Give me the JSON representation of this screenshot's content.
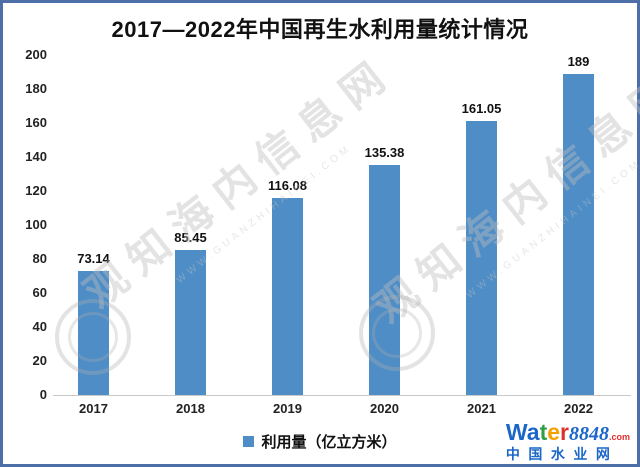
{
  "title": "2017—2022年中国再生水利用量统计情况",
  "chart_data": {
    "type": "bar",
    "categories": [
      "2017",
      "2018",
      "2019",
      "2020",
      "2021",
      "2022"
    ],
    "values": [
      73.14,
      85.45,
      116.08,
      135.38,
      161.05,
      189
    ],
    "value_labels": [
      "73.14",
      "85.45",
      "116.08",
      "135.38",
      "161.05",
      "189"
    ],
    "title": "2017—2022年中国再生水利用量统计情况",
    "xlabel": "",
    "ylabel": "",
    "ylim": [
      0,
      200
    ],
    "yticks": [
      0,
      20,
      40,
      60,
      80,
      100,
      120,
      140,
      160,
      180,
      200
    ],
    "grid": false,
    "bar_color": "#4e8dc6",
    "legend": {
      "label": "利用量（亿立方米）",
      "position": "bottom",
      "marker_color": "#4e8dc6"
    }
  },
  "watermark": {
    "text": "观知海内信息网",
    "subtext": "WWW.GUANZHIHAINEI.COM"
  },
  "branding": {
    "letters": [
      {
        "ch": "W",
        "color": "#1b66c9"
      },
      {
        "ch": "a",
        "color": "#1b66c9"
      },
      {
        "ch": "t",
        "color": "#2f9e44"
      },
      {
        "ch": "e",
        "color": "#f59f00"
      },
      {
        "ch": "r",
        "color": "#e03131"
      }
    ],
    "number": "8848",
    "dotcom": ".com",
    "chinese": "中国水业网"
  },
  "colors": {
    "border": "#4d6fa8",
    "bar": "#4e8dc6",
    "axis_line": "#c9c9c9",
    "watermark": "#bdbdbd"
  }
}
